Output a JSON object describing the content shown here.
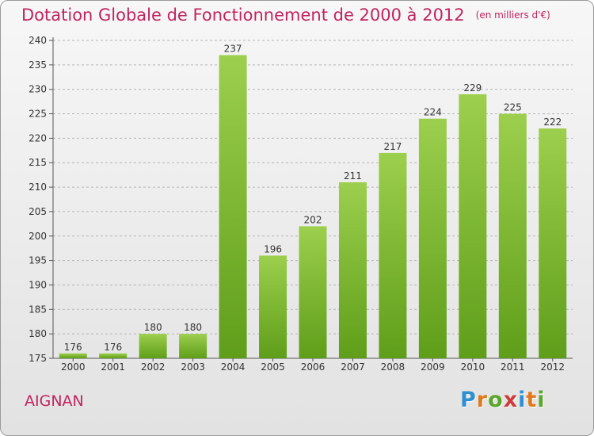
{
  "title": "Dotation Globale de Fonctionnement de 2000 à 2012",
  "subtitle": "(en milliers d'€)",
  "commune": "AIGNAN",
  "logo": {
    "text": "Proxiti",
    "colors": [
      "#2f8fd0",
      "#e07a1c",
      "#5aa62b",
      "#d23a3a"
    ]
  },
  "chart_data": {
    "type": "bar",
    "categories": [
      "2000",
      "2001",
      "2002",
      "2003",
      "2004",
      "2005",
      "2006",
      "2007",
      "2008",
      "2009",
      "2010",
      "2011",
      "2012"
    ],
    "values": [
      176,
      176,
      180,
      180,
      237,
      196,
      202,
      211,
      217,
      224,
      229,
      225,
      222
    ],
    "ylim": [
      175,
      240
    ],
    "yticks": [
      175,
      180,
      185,
      190,
      195,
      200,
      205,
      210,
      215,
      220,
      225,
      230,
      235,
      240
    ],
    "grid": true,
    "bar_color": "#7cbf2e"
  }
}
